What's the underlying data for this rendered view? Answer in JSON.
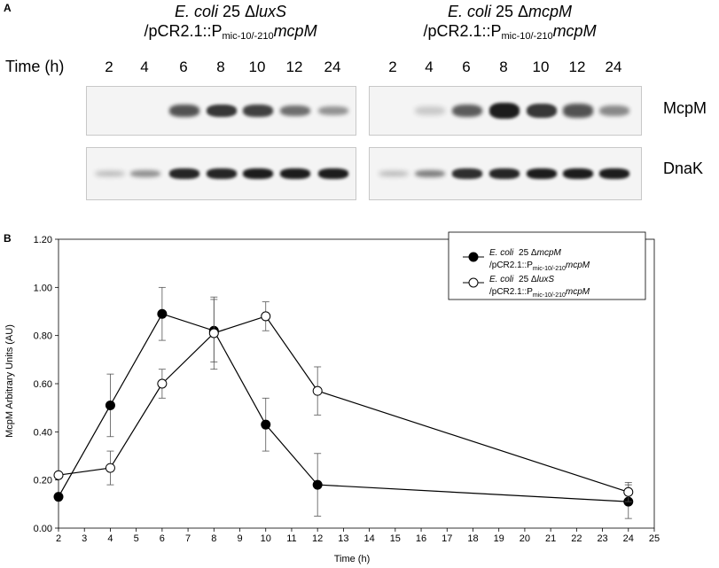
{
  "panel_a": {
    "label": "A",
    "time_label": "Time (h)",
    "strains": [
      {
        "species": "E. coli",
        "strain_prefix": "25 Δ",
        "gene": "luxS",
        "plasmid": "/pCR2.1::P",
        "promoter_subscript": "mic-10/-210",
        "insert": "mcpM",
        "lanes": [
          "2",
          "4",
          "6",
          "8",
          "10",
          "12",
          "24"
        ],
        "mcpm_band_intensity": [
          0.0,
          0.0,
          0.7,
          0.85,
          0.8,
          0.55,
          0.35
        ],
        "dnak_band_intensity": [
          0.15,
          0.35,
          0.95,
          0.95,
          1.0,
          1.0,
          1.0
        ]
      },
      {
        "species": "E. coli",
        "strain_prefix": "25 Δ",
        "gene": "mcpM",
        "plasmid": "/pCR2.1::P",
        "promoter_subscript": "mic-10/-210",
        "insert": "mcpM",
        "lanes": [
          "2",
          "4",
          "6",
          "8",
          "10",
          "12",
          "24"
        ],
        "mcpm_band_intensity": [
          0.0,
          0.05,
          0.65,
          1.0,
          0.85,
          0.7,
          0.4
        ],
        "dnak_band_intensity": [
          0.15,
          0.45,
          0.9,
          0.95,
          1.0,
          1.0,
          1.0
        ]
      }
    ],
    "proteins": [
      "McpM",
      "DnaK"
    ]
  },
  "panel_b": {
    "label": "B"
  },
  "chart_data": {
    "type": "line",
    "xlabel": "Time (h)",
    "ylabel": "McpM Arbitrary Units (AU)",
    "xlim": [
      2,
      25
    ],
    "ylim": [
      0,
      1.2
    ],
    "xticks": [
      2,
      3,
      4,
      5,
      6,
      7,
      8,
      9,
      10,
      11,
      12,
      13,
      14,
      15,
      16,
      17,
      18,
      19,
      20,
      21,
      22,
      23,
      24,
      25
    ],
    "yticks": [
      "0.00",
      "0.20",
      "0.40",
      "0.60",
      "0.80",
      "1.00",
      "1.20"
    ],
    "legend_position": "top-right",
    "series": [
      {
        "name_species": "E. coli",
        "name_strain": "25 Δ",
        "name_gene": "mcpM",
        "name_plasmid": "/pCR2.1::P",
        "name_subscript": "mic-10/-210",
        "name_insert": "mcpM",
        "marker": "filled",
        "color": "#000000",
        "x": [
          2,
          4,
          6,
          8,
          10,
          12,
          24
        ],
        "y": [
          0.13,
          0.51,
          0.89,
          0.82,
          0.43,
          0.18,
          0.11
        ],
        "err": [
          0.0,
          0.13,
          0.11,
          0.13,
          0.11,
          0.13,
          0.07
        ]
      },
      {
        "name_species": "E. coli",
        "name_strain": "25 Δ",
        "name_gene": "luxS",
        "name_plasmid": "/pCR2.1::P",
        "name_subscript": "mic-10/-210",
        "name_insert": "mcpM",
        "marker": "open",
        "color": "#000000",
        "x": [
          2,
          4,
          6,
          8,
          10,
          12,
          24
        ],
        "y": [
          0.22,
          0.25,
          0.6,
          0.81,
          0.88,
          0.57,
          0.15
        ],
        "err": [
          0.0,
          0.07,
          0.06,
          0.15,
          0.06,
          0.1,
          0.04
        ]
      }
    ]
  }
}
